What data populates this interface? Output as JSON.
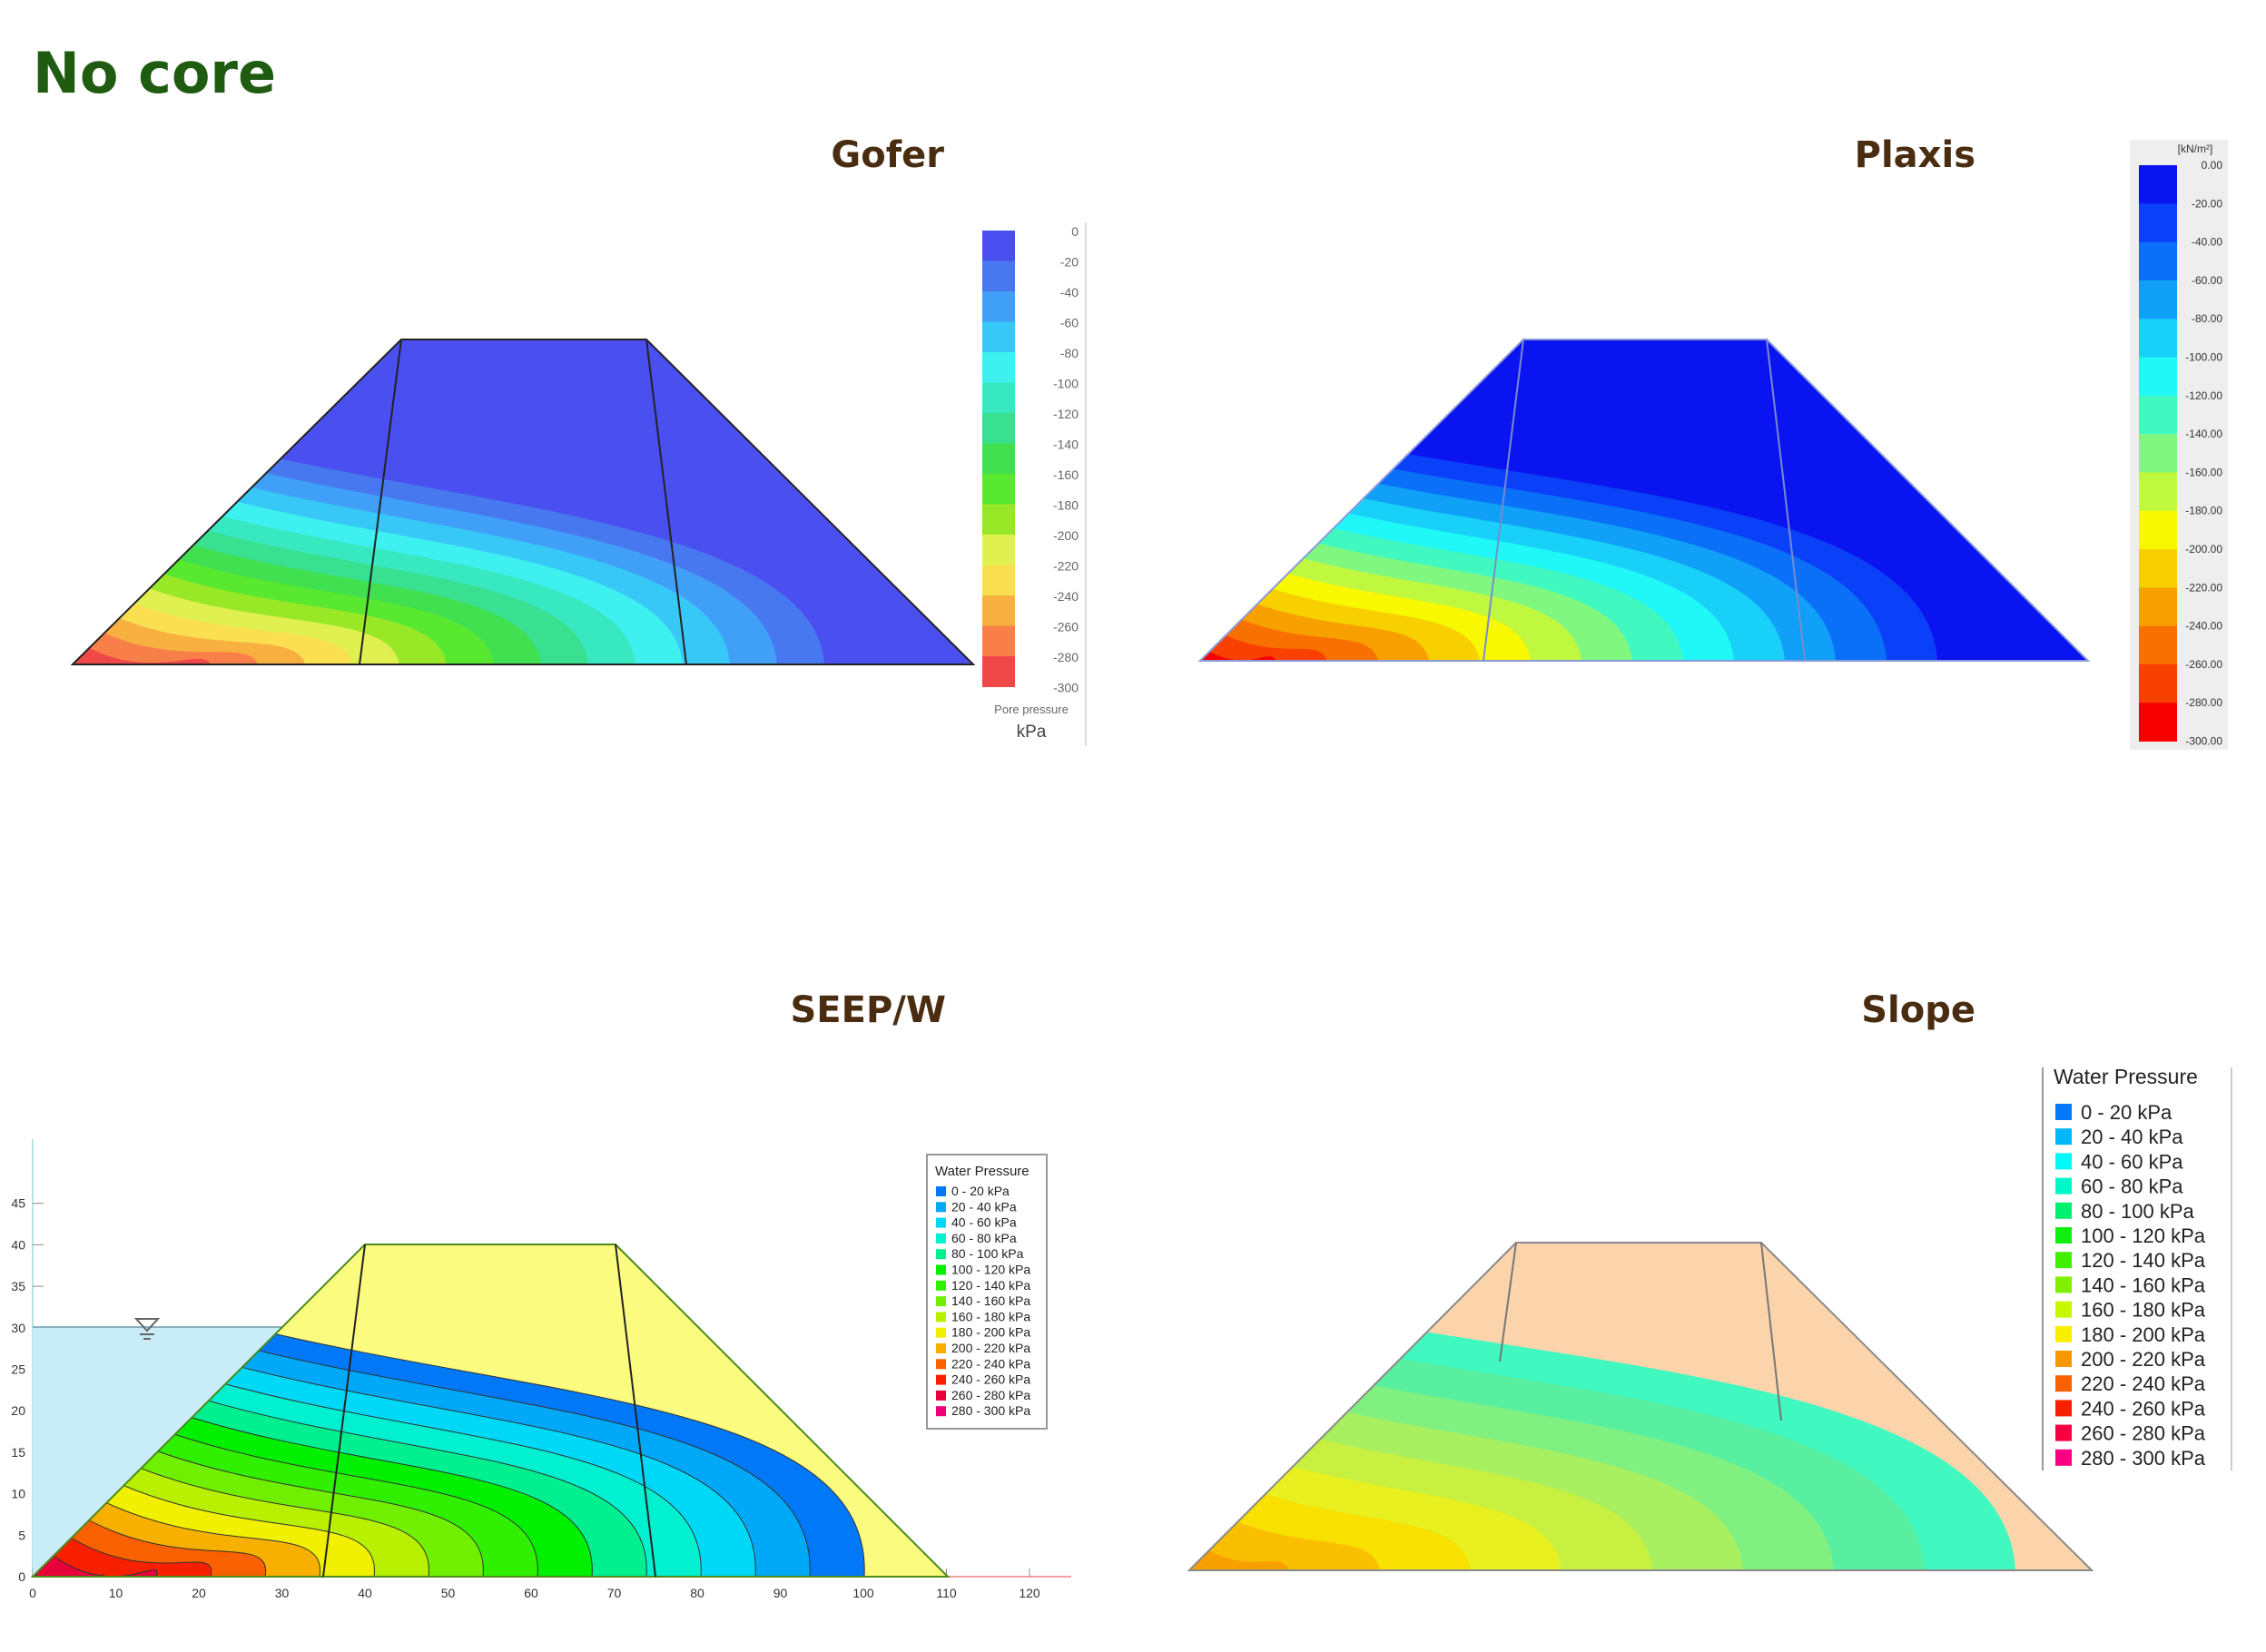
{
  "page_title": "No core",
  "panels": {
    "gofer": {
      "title": "Gofer",
      "legend_ticks": [
        "0",
        "-20",
        "-40",
        "-60",
        "-80",
        "-100",
        "-120",
        "-140",
        "-160",
        "-180",
        "-200",
        "-220",
        "-240",
        "-260",
        "-280",
        "-300"
      ],
      "legend_caption": "Pore pressure",
      "legend_unit": "kPa"
    },
    "plaxis": {
      "title": "Plaxis",
      "legend_unit": "[kN/m²]",
      "legend_ticks": [
        "0.00",
        "-20.00",
        "-40.00",
        "-60.00",
        "-80.00",
        "-100.00",
        "-120.00",
        "-140.00",
        "-160.00",
        "-180.00",
        "-200.00",
        "-220.00",
        "-240.00",
        "-260.00",
        "-280.00",
        "-300.00"
      ]
    },
    "seepw": {
      "title": "SEEP/W",
      "legend_title": "Water Pressure",
      "legend_items": [
        "0 - 20 kPa",
        "20 - 40 kPa",
        "40 - 60 kPa",
        "60 - 80 kPa",
        "80 - 100 kPa",
        "100 - 120 kPa",
        "120 - 140 kPa",
        "140 - 160 kPa",
        "160 - 180 kPa",
        "180 - 200 kPa",
        "200 - 220 kPa",
        "220 - 240 kPa",
        "240 - 260 kPa",
        "260 - 280 kPa",
        "280 - 300 kPa"
      ],
      "x_ticks": [
        "0",
        "10",
        "20",
        "30",
        "40",
        "50",
        "60",
        "70",
        "80",
        "90",
        "100",
        "110",
        "120"
      ],
      "y_ticks": [
        "0",
        "5",
        "10",
        "15",
        "20",
        "25",
        "30",
        "35",
        "40",
        "45"
      ]
    },
    "slope": {
      "title": "Slope",
      "legend_title": "Water Pressure",
      "legend_items": [
        "0 - 20 kPa",
        "20 - 40 kPa",
        "40 - 60 kPa",
        "60 - 80 kPa",
        "80 - 100 kPa",
        "100 - 120 kPa",
        "120 - 140 kPa",
        "140 - 160 kPa",
        "160 - 180 kPa",
        "180 - 200 kPa",
        "200 - 220 kPa",
        "220 - 240 kPa",
        "240 - 260 kPa",
        "260 - 280 kPa",
        "280 - 300 kPa"
      ]
    }
  },
  "colors": {
    "title_green": "#1f5c12",
    "panel_title_brown": "#4a2c10",
    "gofer_dry": "#4a50f0",
    "plaxis_dry": "#0a14f0",
    "seepw_dry": "#fbfb80",
    "slope_dry": "#fbd4ac",
    "reservoir": "#c8ecf8"
  }
}
